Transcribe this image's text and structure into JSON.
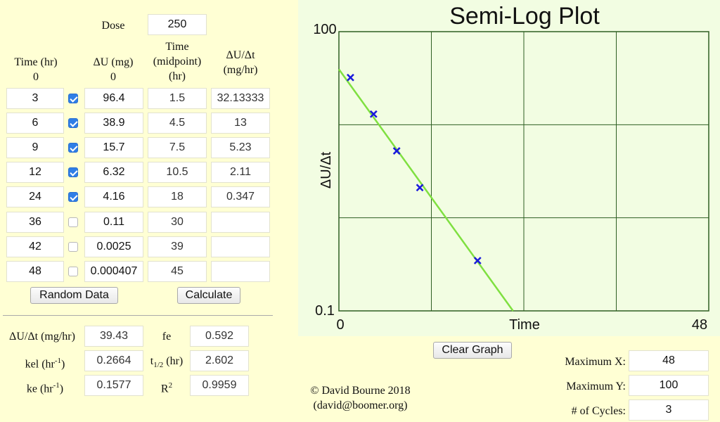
{
  "dose": {
    "label": "Dose",
    "value": "250"
  },
  "headers": {
    "time": [
      "Time (hr)",
      "0"
    ],
    "du": [
      "ΔU (mg)",
      "0"
    ],
    "mid": [
      "Time",
      "(midpoint)",
      "(hr)"
    ],
    "rate": [
      "ΔU/Δt",
      "(mg/hr)"
    ]
  },
  "rows": [
    {
      "time": "3",
      "checked": true,
      "du": "96.4",
      "mid": "1.5",
      "rate": "32.13333"
    },
    {
      "time": "6",
      "checked": true,
      "du": "38.9",
      "mid": "4.5",
      "rate": "13"
    },
    {
      "time": "9",
      "checked": true,
      "du": "15.7",
      "mid": "7.5",
      "rate": "5.23"
    },
    {
      "time": "12",
      "checked": true,
      "du": "6.32",
      "mid": "10.5",
      "rate": "2.11"
    },
    {
      "time": "24",
      "checked": true,
      "du": "4.16",
      "mid": "18",
      "rate": "0.347"
    },
    {
      "time": "36",
      "checked": false,
      "du": "0.11",
      "mid": "30",
      "rate": ""
    },
    {
      "time": "42",
      "checked": false,
      "du": "0.0025",
      "mid": "39",
      "rate": ""
    },
    {
      "time": "48",
      "checked": false,
      "du": "0.000407",
      "mid": "45",
      "rate": ""
    }
  ],
  "buttons": {
    "random": "Random Data",
    "calculate": "Calculate",
    "clear": "Clear Graph"
  },
  "results": {
    "rate_label": "ΔU/Δt (mg/hr)",
    "rate_value": "39.43",
    "fe_label": "fe",
    "fe_value": "0.592",
    "kel_label": "kel (hr",
    "kel_sup": "-1",
    "kel_close": ")",
    "kel_value": "0.2664",
    "thalf_label": "t",
    "thalf_sub": "1/2",
    "thalf_rest": " (hr)",
    "thalf_value": "2.602",
    "ke_label": "ke (hr",
    "ke_sup": "-1",
    "ke_close": ")",
    "ke_value": "0.1577",
    "r2_label": "R",
    "r2_sup": "2",
    "r2_value": "0.9959"
  },
  "copyright": {
    "line1": "© David Bourne 2018",
    "line2": "(david@boomer.org)"
  },
  "settings": {
    "max_x_label": "Maximum X:",
    "max_x": "48",
    "max_y_label": "Maximum Y:",
    "max_y": "100",
    "cycles_label": "# of Cycles:",
    "cycles": "3"
  },
  "chart_data": {
    "type": "scatter",
    "title": "Semi-Log Plot",
    "xlabel": "Time",
    "ylabel": "ΔU/Δt",
    "xlim": [
      0,
      48
    ],
    "ylim": [
      0.1,
      100
    ],
    "yscale": "log",
    "x_ticks": [
      "0",
      "48"
    ],
    "y_ticks": [
      "100",
      "0.1"
    ],
    "grid": true,
    "points": [
      {
        "x": 1.5,
        "y": 32.13
      },
      {
        "x": 4.5,
        "y": 13
      },
      {
        "x": 7.5,
        "y": 5.23
      },
      {
        "x": 10.5,
        "y": 2.11
      },
      {
        "x": 18,
        "y": 0.347
      }
    ],
    "fit_line": {
      "x": [
        0,
        22.6
      ],
      "y": [
        39.43,
        0.1
      ]
    },
    "colors": {
      "points": "#1a1adc",
      "line": "#7fe040",
      "grid": "#2e5e22",
      "background": "#f2fde2"
    }
  }
}
